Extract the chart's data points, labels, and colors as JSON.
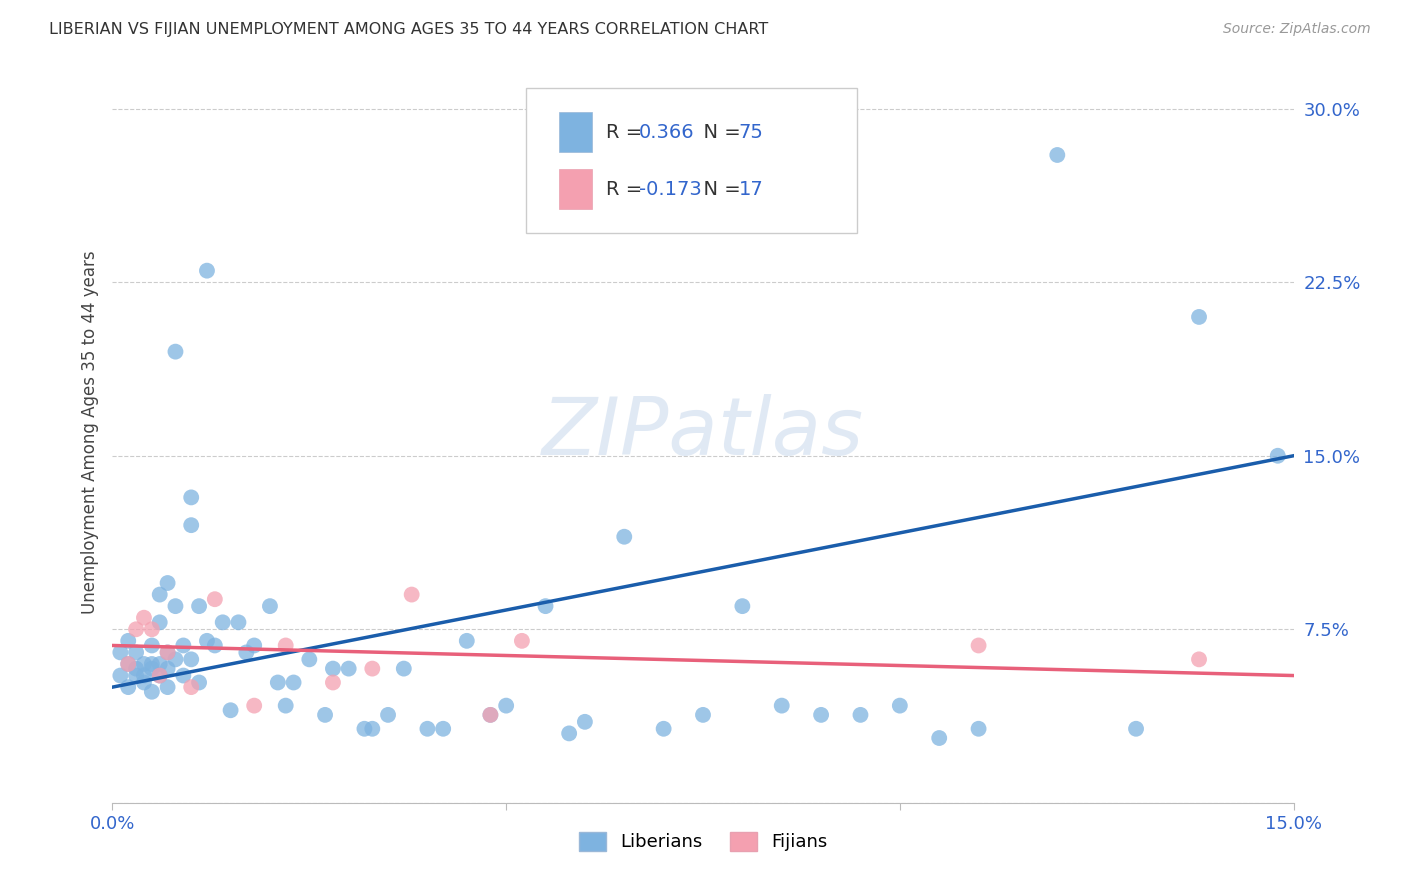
{
  "title": "LIBERIAN VS FIJIAN UNEMPLOYMENT AMONG AGES 35 TO 44 YEARS CORRELATION CHART",
  "source": "Source: ZipAtlas.com",
  "ylabel": "Unemployment Among Ages 35 to 44 years",
  "xlim": [
    0.0,
    0.15
  ],
  "ylim": [
    0.0,
    0.32
  ],
  "xtick_vals": [
    0.0,
    0.05,
    0.1,
    0.15
  ],
  "xtick_labels": [
    "0.0%",
    "",
    "",
    "15.0%"
  ],
  "ytick_vals": [
    0.0,
    0.075,
    0.15,
    0.225,
    0.3
  ],
  "ytick_labels": [
    "",
    "7.5%",
    "15.0%",
    "22.5%",
    "30.0%"
  ],
  "liberian_color": "#7EB3E0",
  "fijian_color": "#F4A0B0",
  "liberian_line_color": "#1A5DAB",
  "fijian_line_color": "#E8607A",
  "watermark_text": "ZIPatlas",
  "watermark_color": "#C8D8EC",
  "bottom_legend_liberian": "Liberians",
  "bottom_legend_fijian": "Fijians",
  "liberian_x": [
    0.001,
    0.001,
    0.002,
    0.002,
    0.002,
    0.003,
    0.003,
    0.003,
    0.004,
    0.004,
    0.004,
    0.005,
    0.005,
    0.005,
    0.005,
    0.006,
    0.006,
    0.006,
    0.006,
    0.007,
    0.007,
    0.007,
    0.007,
    0.008,
    0.008,
    0.008,
    0.009,
    0.009,
    0.01,
    0.01,
    0.01,
    0.011,
    0.011,
    0.012,
    0.012,
    0.013,
    0.014,
    0.015,
    0.016,
    0.017,
    0.018,
    0.02,
    0.021,
    0.022,
    0.023,
    0.025,
    0.027,
    0.028,
    0.03,
    0.032,
    0.033,
    0.035,
    0.037,
    0.04,
    0.042,
    0.045,
    0.048,
    0.05,
    0.055,
    0.058,
    0.06,
    0.065,
    0.07,
    0.075,
    0.08,
    0.085,
    0.09,
    0.095,
    0.1,
    0.105,
    0.11,
    0.12,
    0.13,
    0.138,
    0.148
  ],
  "liberian_y": [
    0.055,
    0.065,
    0.06,
    0.05,
    0.07,
    0.058,
    0.065,
    0.055,
    0.06,
    0.055,
    0.052,
    0.068,
    0.058,
    0.048,
    0.06,
    0.09,
    0.078,
    0.06,
    0.055,
    0.095,
    0.065,
    0.058,
    0.05,
    0.195,
    0.085,
    0.062,
    0.068,
    0.055,
    0.132,
    0.12,
    0.062,
    0.085,
    0.052,
    0.23,
    0.07,
    0.068,
    0.078,
    0.04,
    0.078,
    0.065,
    0.068,
    0.085,
    0.052,
    0.042,
    0.052,
    0.062,
    0.038,
    0.058,
    0.058,
    0.032,
    0.032,
    0.038,
    0.058,
    0.032,
    0.032,
    0.07,
    0.038,
    0.042,
    0.085,
    0.03,
    0.035,
    0.115,
    0.032,
    0.038,
    0.085,
    0.042,
    0.038,
    0.038,
    0.042,
    0.028,
    0.032,
    0.28,
    0.032,
    0.21,
    0.15
  ],
  "fijian_x": [
    0.002,
    0.003,
    0.004,
    0.005,
    0.006,
    0.007,
    0.01,
    0.013,
    0.018,
    0.022,
    0.028,
    0.033,
    0.038,
    0.048,
    0.052,
    0.11,
    0.138
  ],
  "fijian_y": [
    0.06,
    0.075,
    0.08,
    0.075,
    0.055,
    0.065,
    0.05,
    0.088,
    0.042,
    0.068,
    0.052,
    0.058,
    0.09,
    0.038,
    0.07,
    0.068,
    0.062
  ],
  "liberian_line_x0": 0.0,
  "liberian_line_y0": 0.05,
  "liberian_line_x1": 0.15,
  "liberian_line_y1": 0.15,
  "fijian_line_x0": 0.0,
  "fijian_line_y0": 0.068,
  "fijian_line_x1": 0.15,
  "fijian_line_y1": 0.055,
  "background_color": "#FFFFFF",
  "grid_color": "#CCCCCC"
}
